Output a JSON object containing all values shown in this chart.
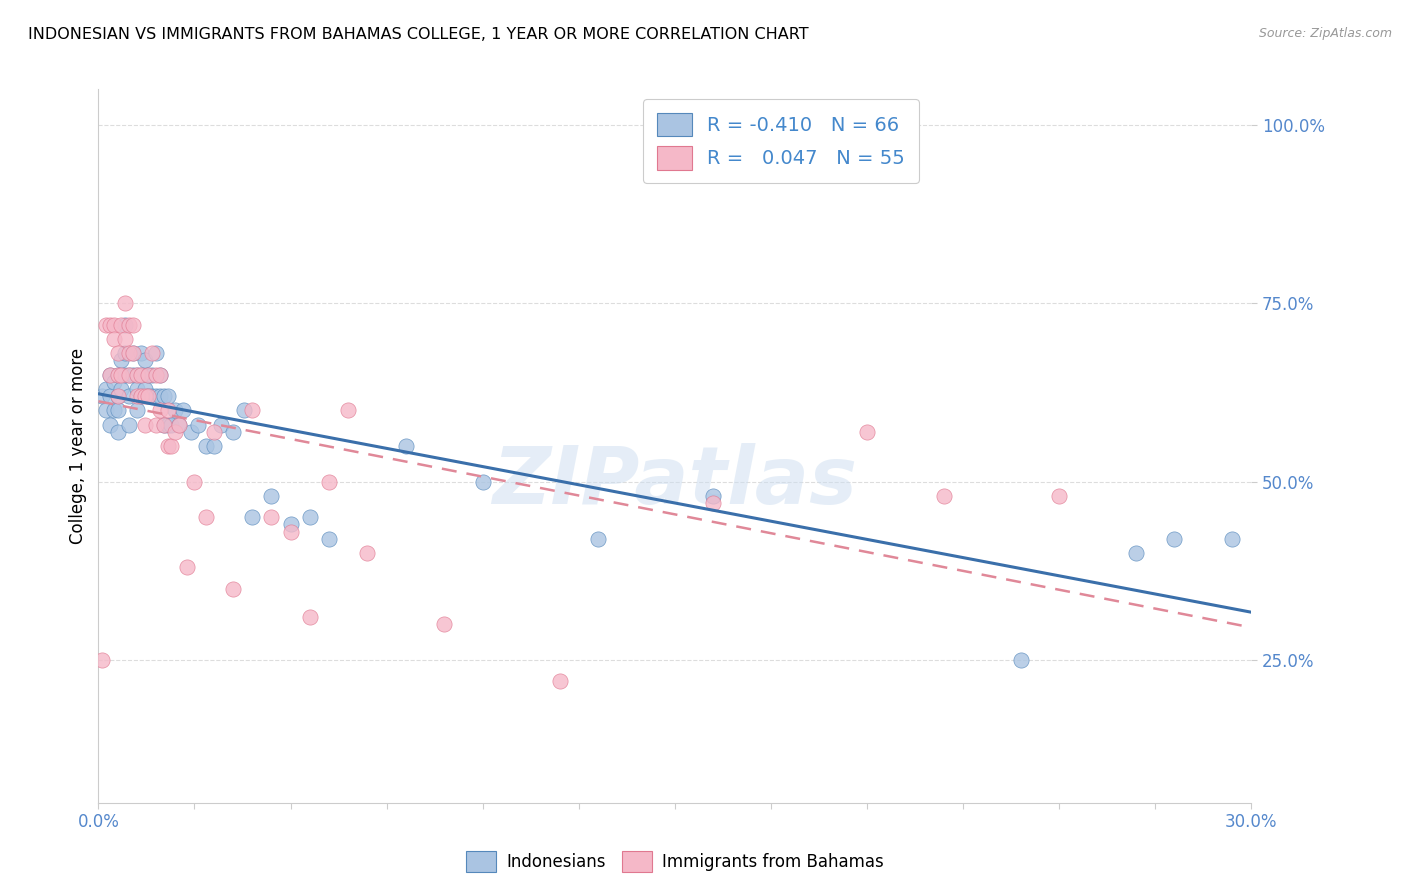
{
  "title": "INDONESIAN VS IMMIGRANTS FROM BAHAMAS COLLEGE, 1 YEAR OR MORE CORRELATION CHART",
  "source": "Source: ZipAtlas.com",
  "ylabel_label": "College, 1 year or more",
  "xmin": 0.0,
  "xmax": 0.3,
  "ymin": 0.05,
  "ymax": 1.05,
  "blue_R": -0.41,
  "blue_N": 66,
  "pink_R": 0.047,
  "pink_N": 55,
  "blue_color": "#aac4e2",
  "pink_color": "#f5b8c8",
  "blue_edge_color": "#5588bb",
  "pink_edge_color": "#e07890",
  "blue_line_color": "#3a6faa",
  "pink_line_color": "#e08898",
  "watermark": "ZIPatlas",
  "blue_scatter_x": [
    0.001,
    0.002,
    0.002,
    0.003,
    0.003,
    0.003,
    0.004,
    0.004,
    0.005,
    0.005,
    0.005,
    0.005,
    0.006,
    0.006,
    0.007,
    0.007,
    0.007,
    0.008,
    0.008,
    0.008,
    0.009,
    0.009,
    0.01,
    0.01,
    0.01,
    0.011,
    0.011,
    0.011,
    0.012,
    0.012,
    0.013,
    0.013,
    0.014,
    0.014,
    0.015,
    0.015,
    0.016,
    0.016,
    0.017,
    0.017,
    0.018,
    0.018,
    0.019,
    0.02,
    0.021,
    0.022,
    0.024,
    0.026,
    0.028,
    0.03,
    0.032,
    0.035,
    0.038,
    0.04,
    0.045,
    0.05,
    0.055,
    0.06,
    0.08,
    0.1,
    0.13,
    0.16,
    0.24,
    0.27,
    0.28,
    0.295
  ],
  "blue_scatter_y": [
    0.62,
    0.63,
    0.6,
    0.65,
    0.62,
    0.58,
    0.64,
    0.6,
    0.65,
    0.62,
    0.6,
    0.57,
    0.67,
    0.63,
    0.72,
    0.68,
    0.65,
    0.65,
    0.62,
    0.58,
    0.68,
    0.65,
    0.65,
    0.63,
    0.6,
    0.68,
    0.65,
    0.62,
    0.67,
    0.63,
    0.65,
    0.62,
    0.65,
    0.62,
    0.68,
    0.62,
    0.65,
    0.62,
    0.62,
    0.58,
    0.62,
    0.58,
    0.58,
    0.6,
    0.58,
    0.6,
    0.57,
    0.58,
    0.55,
    0.55,
    0.58,
    0.57,
    0.6,
    0.45,
    0.48,
    0.44,
    0.45,
    0.42,
    0.55,
    0.5,
    0.42,
    0.48,
    0.25,
    0.4,
    0.42,
    0.42
  ],
  "pink_scatter_x": [
    0.001,
    0.002,
    0.003,
    0.003,
    0.004,
    0.004,
    0.005,
    0.005,
    0.005,
    0.006,
    0.006,
    0.007,
    0.007,
    0.008,
    0.008,
    0.008,
    0.009,
    0.009,
    0.01,
    0.01,
    0.011,
    0.011,
    0.012,
    0.012,
    0.013,
    0.013,
    0.014,
    0.015,
    0.015,
    0.016,
    0.016,
    0.017,
    0.018,
    0.018,
    0.019,
    0.02,
    0.021,
    0.023,
    0.025,
    0.028,
    0.03,
    0.035,
    0.04,
    0.045,
    0.05,
    0.055,
    0.06,
    0.065,
    0.07,
    0.09,
    0.12,
    0.16,
    0.2,
    0.22,
    0.25
  ],
  "pink_scatter_y": [
    0.25,
    0.72,
    0.72,
    0.65,
    0.72,
    0.7,
    0.68,
    0.65,
    0.62,
    0.72,
    0.65,
    0.75,
    0.7,
    0.72,
    0.68,
    0.65,
    0.72,
    0.68,
    0.65,
    0.62,
    0.65,
    0.62,
    0.62,
    0.58,
    0.65,
    0.62,
    0.68,
    0.65,
    0.58,
    0.65,
    0.6,
    0.58,
    0.6,
    0.55,
    0.55,
    0.57,
    0.58,
    0.38,
    0.5,
    0.45,
    0.57,
    0.35,
    0.6,
    0.45,
    0.43,
    0.31,
    0.5,
    0.6,
    0.4,
    0.3,
    0.22,
    0.47,
    0.57,
    0.48,
    0.48
  ]
}
